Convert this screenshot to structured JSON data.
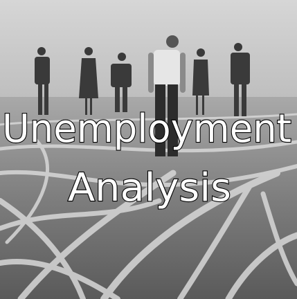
{
  "title": {
    "line1": "Unemployment",
    "line2": "Analysis"
  }
}
